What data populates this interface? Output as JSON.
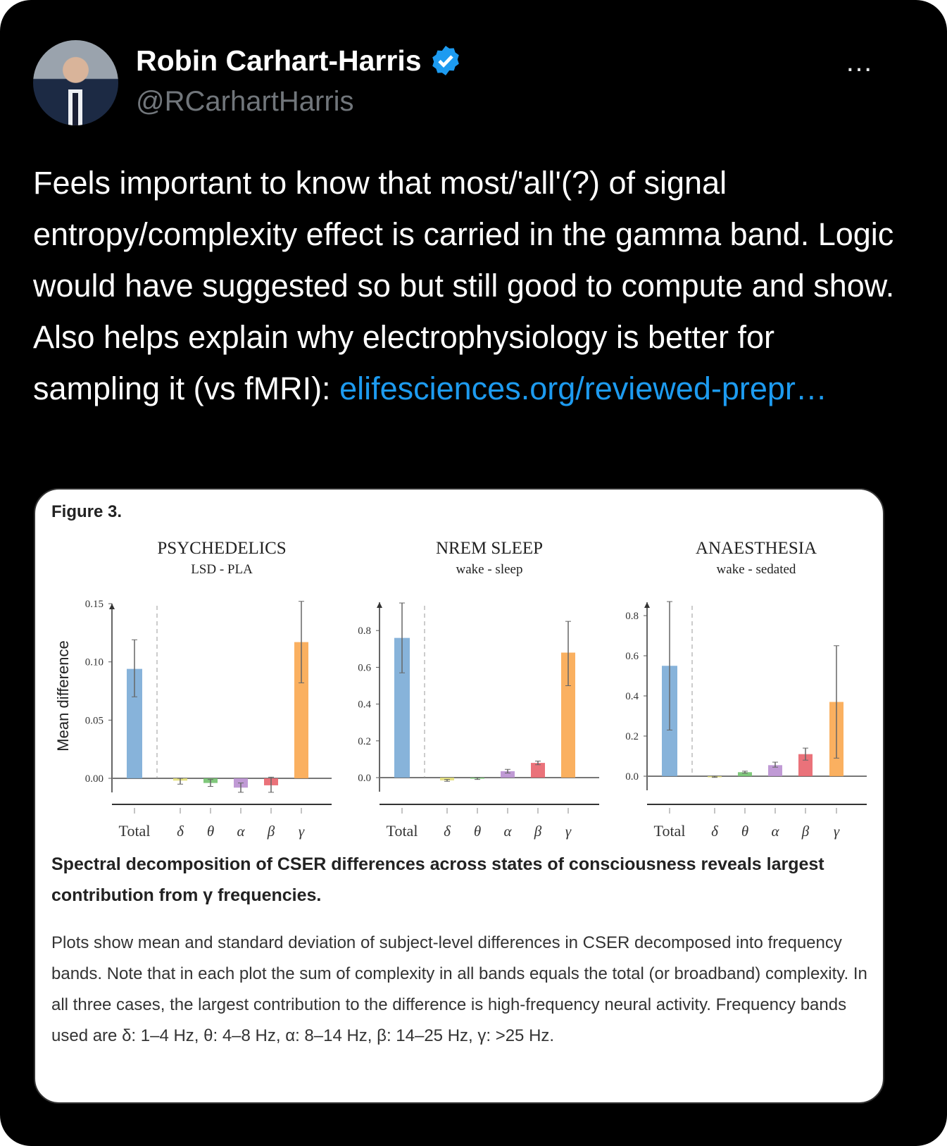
{
  "author": {
    "name": "Robin Carhart-Harris",
    "handle": "@RCarhartHarris",
    "verified": true
  },
  "tweet": {
    "text": "Feels important to know that most/'all'(?) of signal entropy/complexity effect is carried in the gamma band. Logic would have suggested so but still good to compute and show. Also helps explain why electrophysiology is better for sampling it (vs fMRI):",
    "link": "elifesciences.org/reviewed-prepr…"
  },
  "more_icon": "…",
  "figure": {
    "label": "Figure 3.",
    "ylabel": "Mean difference",
    "caption": "Spectral decomposition of CSER differences across states of consciousness reveals largest contribution from γ frequencies.",
    "description": "Plots show mean and standard deviation of subject-level differences in CSER decomposed into frequency bands. Note that in each plot the sum of complexity in all bands equals the total (or broadband) complexity. In all three cases, the largest contribution to the difference is high-frequency neural activity. Frequency bands used are δ: 1–4 Hz, θ: 4–8 Hz, α: 8–14 Hz, β: 14–25 Hz, γ: >25 Hz."
  },
  "chart_data": [
    {
      "type": "bar",
      "title": "PSYCHEDELICS",
      "subtitle": "LSD - PLA",
      "ylabel": "Mean difference",
      "categories": [
        "Total",
        "δ",
        "θ",
        "α",
        "β",
        "γ"
      ],
      "values": [
        0.094,
        -0.002,
        -0.004,
        -0.008,
        -0.006,
        0.117
      ],
      "err_low": [
        0.07,
        -0.005,
        -0.007,
        -0.012,
        -0.012,
        0.082
      ],
      "err_high": [
        0.119,
        0.0,
        -0.001,
        -0.004,
        0.001,
        0.152
      ],
      "yticks": [
        "0.00",
        "0.05",
        "0.10",
        "0.15"
      ],
      "ytick_values": [
        0,
        0.05,
        0.1,
        0.15
      ],
      "ylim": [
        -0.013,
        0.15
      ]
    },
    {
      "type": "bar",
      "title": "NREM SLEEP",
      "subtitle": "wake - sleep",
      "categories": [
        "Total",
        "δ",
        "θ",
        "α",
        "β",
        "γ"
      ],
      "values": [
        0.76,
        -0.015,
        -0.005,
        0.035,
        0.08,
        0.68
      ],
      "err_low": [
        0.57,
        -0.02,
        -0.01,
        0.025,
        0.07,
        0.5
      ],
      "err_high": [
        0.95,
        -0.01,
        0.0,
        0.045,
        0.09,
        0.85
      ],
      "yticks": [
        "0.0",
        "0.2",
        "0.4",
        "0.6",
        "0.8"
      ],
      "ytick_values": [
        0,
        0.2,
        0.4,
        0.6,
        0.8
      ],
      "ylim": [
        -0.1,
        0.95
      ]
    },
    {
      "type": "bar",
      "title": "ANAESTHESIA",
      "subtitle": "wake - sedated",
      "categories": [
        "Total",
        "δ",
        "θ",
        "α",
        "β",
        "γ"
      ],
      "values": [
        0.55,
        -0.003,
        0.02,
        0.055,
        0.11,
        0.37
      ],
      "err_low": [
        0.23,
        -0.006,
        0.015,
        0.045,
        0.08,
        0.09
      ],
      "err_high": [
        0.87,
        0.0,
        0.025,
        0.07,
        0.14,
        0.65
      ],
      "yticks": [
        "0.0",
        "0.2",
        "0.4",
        "0.6",
        "0.8"
      ],
      "ytick_values": [
        0,
        0.2,
        0.4,
        0.6,
        0.8
      ],
      "ylim": [
        -0.1,
        0.87
      ]
    }
  ],
  "colors": {
    "Total": "#7aabd6",
    "δ": "#e3df78",
    "θ": "#72c26e",
    "α": "#b98fd0",
    "β": "#e8636b",
    "γ": "#f9a74f",
    "link": "#1d9bf0",
    "verified": "#1d9bf0"
  }
}
